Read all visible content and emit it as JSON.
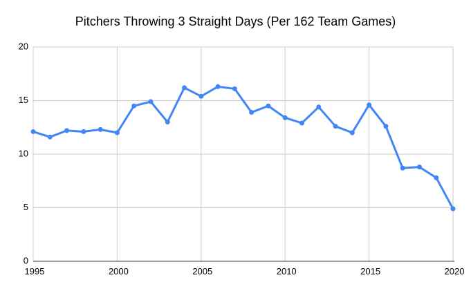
{
  "chart_data": {
    "type": "line",
    "title": "Pitchers Throwing 3 Straight Days (Per 162 Team Games)",
    "x": [
      1995,
      1996,
      1997,
      1998,
      1999,
      2000,
      2001,
      2002,
      2003,
      2004,
      2005,
      2006,
      2007,
      2008,
      2009,
      2010,
      2011,
      2012,
      2013,
      2014,
      2015,
      2016,
      2017,
      2018,
      2019,
      2020
    ],
    "values": [
      12.1,
      11.6,
      12.2,
      12.1,
      12.3,
      12.0,
      14.5,
      14.9,
      13.0,
      16.2,
      15.4,
      16.3,
      16.1,
      13.9,
      14.5,
      13.4,
      12.9,
      14.4,
      12.6,
      12.0,
      14.6,
      12.6,
      8.7,
      8.8,
      7.8,
      4.9
    ],
    "xlabel": "",
    "ylabel": "",
    "xlim": [
      1995,
      2020
    ],
    "ylim": [
      0,
      20
    ],
    "xticks": [
      1995,
      2000,
      2005,
      2010,
      2015,
      2020
    ],
    "yticks": [
      0,
      5,
      10,
      15,
      20
    ],
    "grid": true,
    "legend": false,
    "series_color": "#4285f4",
    "gridline_color": "#cccccc",
    "axis_line_color": "#333333",
    "label_color": "#000000",
    "background": "#ffffff",
    "marker": "circle",
    "marker_radius": 3.5,
    "line_width": 3
  }
}
